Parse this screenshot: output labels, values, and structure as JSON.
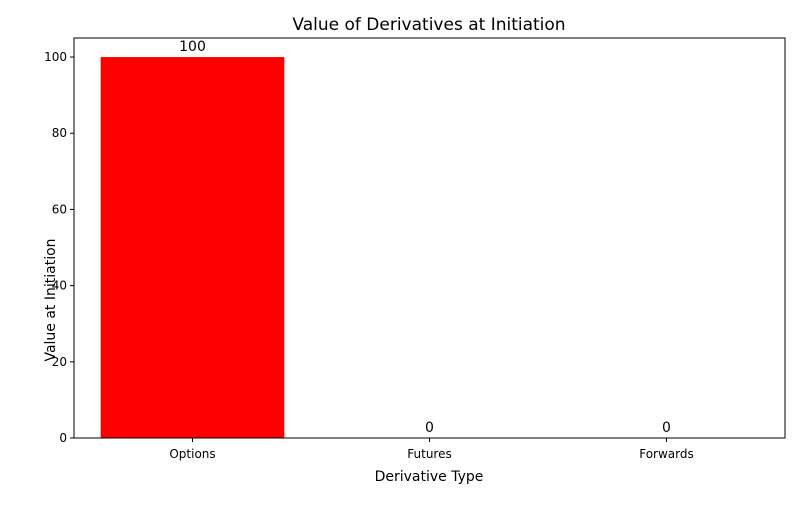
{
  "chart_data": {
    "type": "bar",
    "title": "Value of Derivatives at Initiation",
    "xlabel": "Derivative Type",
    "ylabel": "Value at Initiation",
    "categories": [
      "Options",
      "Futures",
      "Forwards"
    ],
    "values": [
      100,
      0,
      0
    ],
    "data_labels": [
      "100",
      "0",
      "0"
    ],
    "bar_color": "#ff0000",
    "ylim": [
      0,
      105
    ],
    "yticks": [
      0,
      20,
      40,
      60,
      80,
      100
    ],
    "grid": false,
    "legend": "none"
  }
}
